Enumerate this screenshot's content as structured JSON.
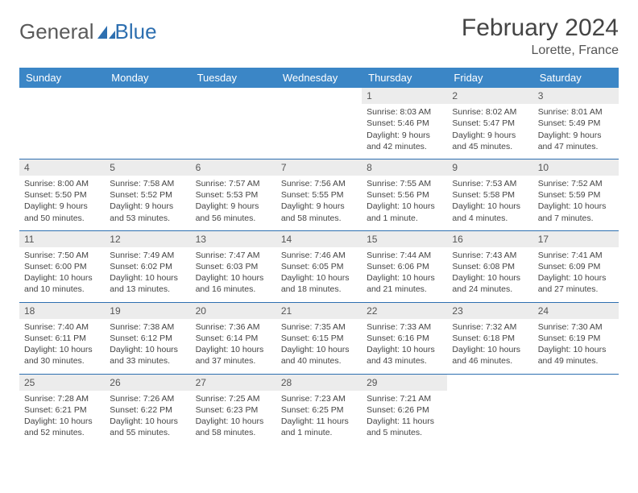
{
  "brand": {
    "part1": "General",
    "part2": "Blue"
  },
  "title": {
    "month": "February 2024",
    "location": "Lorette, France"
  },
  "colors": {
    "header_bg": "#3b86c6",
    "header_text": "#ffffff",
    "daynum_bg": "#ececec",
    "rule": "#2d6fb0",
    "text": "#444444",
    "brand_gray": "#5a5a5a",
    "brand_blue": "#2d6fb0"
  },
  "day_headers": [
    "Sunday",
    "Monday",
    "Tuesday",
    "Wednesday",
    "Thursday",
    "Friday",
    "Saturday"
  ],
  "weeks": [
    [
      {
        "n": "",
        "sr": "",
        "ss": "",
        "d1": "",
        "d2": ""
      },
      {
        "n": "",
        "sr": "",
        "ss": "",
        "d1": "",
        "d2": ""
      },
      {
        "n": "",
        "sr": "",
        "ss": "",
        "d1": "",
        "d2": ""
      },
      {
        "n": "",
        "sr": "",
        "ss": "",
        "d1": "",
        "d2": ""
      },
      {
        "n": "1",
        "sr": "Sunrise: 8:03 AM",
        "ss": "Sunset: 5:46 PM",
        "d1": "Daylight: 9 hours",
        "d2": "and 42 minutes."
      },
      {
        "n": "2",
        "sr": "Sunrise: 8:02 AM",
        "ss": "Sunset: 5:47 PM",
        "d1": "Daylight: 9 hours",
        "d2": "and 45 minutes."
      },
      {
        "n": "3",
        "sr": "Sunrise: 8:01 AM",
        "ss": "Sunset: 5:49 PM",
        "d1": "Daylight: 9 hours",
        "d2": "and 47 minutes."
      }
    ],
    [
      {
        "n": "4",
        "sr": "Sunrise: 8:00 AM",
        "ss": "Sunset: 5:50 PM",
        "d1": "Daylight: 9 hours",
        "d2": "and 50 minutes."
      },
      {
        "n": "5",
        "sr": "Sunrise: 7:58 AM",
        "ss": "Sunset: 5:52 PM",
        "d1": "Daylight: 9 hours",
        "d2": "and 53 minutes."
      },
      {
        "n": "6",
        "sr": "Sunrise: 7:57 AM",
        "ss": "Sunset: 5:53 PM",
        "d1": "Daylight: 9 hours",
        "d2": "and 56 minutes."
      },
      {
        "n": "7",
        "sr": "Sunrise: 7:56 AM",
        "ss": "Sunset: 5:55 PM",
        "d1": "Daylight: 9 hours",
        "d2": "and 58 minutes."
      },
      {
        "n": "8",
        "sr": "Sunrise: 7:55 AM",
        "ss": "Sunset: 5:56 PM",
        "d1": "Daylight: 10 hours",
        "d2": "and 1 minute."
      },
      {
        "n": "9",
        "sr": "Sunrise: 7:53 AM",
        "ss": "Sunset: 5:58 PM",
        "d1": "Daylight: 10 hours",
        "d2": "and 4 minutes."
      },
      {
        "n": "10",
        "sr": "Sunrise: 7:52 AM",
        "ss": "Sunset: 5:59 PM",
        "d1": "Daylight: 10 hours",
        "d2": "and 7 minutes."
      }
    ],
    [
      {
        "n": "11",
        "sr": "Sunrise: 7:50 AM",
        "ss": "Sunset: 6:00 PM",
        "d1": "Daylight: 10 hours",
        "d2": "and 10 minutes."
      },
      {
        "n": "12",
        "sr": "Sunrise: 7:49 AM",
        "ss": "Sunset: 6:02 PM",
        "d1": "Daylight: 10 hours",
        "d2": "and 13 minutes."
      },
      {
        "n": "13",
        "sr": "Sunrise: 7:47 AM",
        "ss": "Sunset: 6:03 PM",
        "d1": "Daylight: 10 hours",
        "d2": "and 16 minutes."
      },
      {
        "n": "14",
        "sr": "Sunrise: 7:46 AM",
        "ss": "Sunset: 6:05 PM",
        "d1": "Daylight: 10 hours",
        "d2": "and 18 minutes."
      },
      {
        "n": "15",
        "sr": "Sunrise: 7:44 AM",
        "ss": "Sunset: 6:06 PM",
        "d1": "Daylight: 10 hours",
        "d2": "and 21 minutes."
      },
      {
        "n": "16",
        "sr": "Sunrise: 7:43 AM",
        "ss": "Sunset: 6:08 PM",
        "d1": "Daylight: 10 hours",
        "d2": "and 24 minutes."
      },
      {
        "n": "17",
        "sr": "Sunrise: 7:41 AM",
        "ss": "Sunset: 6:09 PM",
        "d1": "Daylight: 10 hours",
        "d2": "and 27 minutes."
      }
    ],
    [
      {
        "n": "18",
        "sr": "Sunrise: 7:40 AM",
        "ss": "Sunset: 6:11 PM",
        "d1": "Daylight: 10 hours",
        "d2": "and 30 minutes."
      },
      {
        "n": "19",
        "sr": "Sunrise: 7:38 AM",
        "ss": "Sunset: 6:12 PM",
        "d1": "Daylight: 10 hours",
        "d2": "and 33 minutes."
      },
      {
        "n": "20",
        "sr": "Sunrise: 7:36 AM",
        "ss": "Sunset: 6:14 PM",
        "d1": "Daylight: 10 hours",
        "d2": "and 37 minutes."
      },
      {
        "n": "21",
        "sr": "Sunrise: 7:35 AM",
        "ss": "Sunset: 6:15 PM",
        "d1": "Daylight: 10 hours",
        "d2": "and 40 minutes."
      },
      {
        "n": "22",
        "sr": "Sunrise: 7:33 AM",
        "ss": "Sunset: 6:16 PM",
        "d1": "Daylight: 10 hours",
        "d2": "and 43 minutes."
      },
      {
        "n": "23",
        "sr": "Sunrise: 7:32 AM",
        "ss": "Sunset: 6:18 PM",
        "d1": "Daylight: 10 hours",
        "d2": "and 46 minutes."
      },
      {
        "n": "24",
        "sr": "Sunrise: 7:30 AM",
        "ss": "Sunset: 6:19 PM",
        "d1": "Daylight: 10 hours",
        "d2": "and 49 minutes."
      }
    ],
    [
      {
        "n": "25",
        "sr": "Sunrise: 7:28 AM",
        "ss": "Sunset: 6:21 PM",
        "d1": "Daylight: 10 hours",
        "d2": "and 52 minutes."
      },
      {
        "n": "26",
        "sr": "Sunrise: 7:26 AM",
        "ss": "Sunset: 6:22 PM",
        "d1": "Daylight: 10 hours",
        "d2": "and 55 minutes."
      },
      {
        "n": "27",
        "sr": "Sunrise: 7:25 AM",
        "ss": "Sunset: 6:23 PM",
        "d1": "Daylight: 10 hours",
        "d2": "and 58 minutes."
      },
      {
        "n": "28",
        "sr": "Sunrise: 7:23 AM",
        "ss": "Sunset: 6:25 PM",
        "d1": "Daylight: 11 hours",
        "d2": "and 1 minute."
      },
      {
        "n": "29",
        "sr": "Sunrise: 7:21 AM",
        "ss": "Sunset: 6:26 PM",
        "d1": "Daylight: 11 hours",
        "d2": "and 5 minutes."
      },
      {
        "n": "",
        "sr": "",
        "ss": "",
        "d1": "",
        "d2": ""
      },
      {
        "n": "",
        "sr": "",
        "ss": "",
        "d1": "",
        "d2": ""
      }
    ]
  ]
}
